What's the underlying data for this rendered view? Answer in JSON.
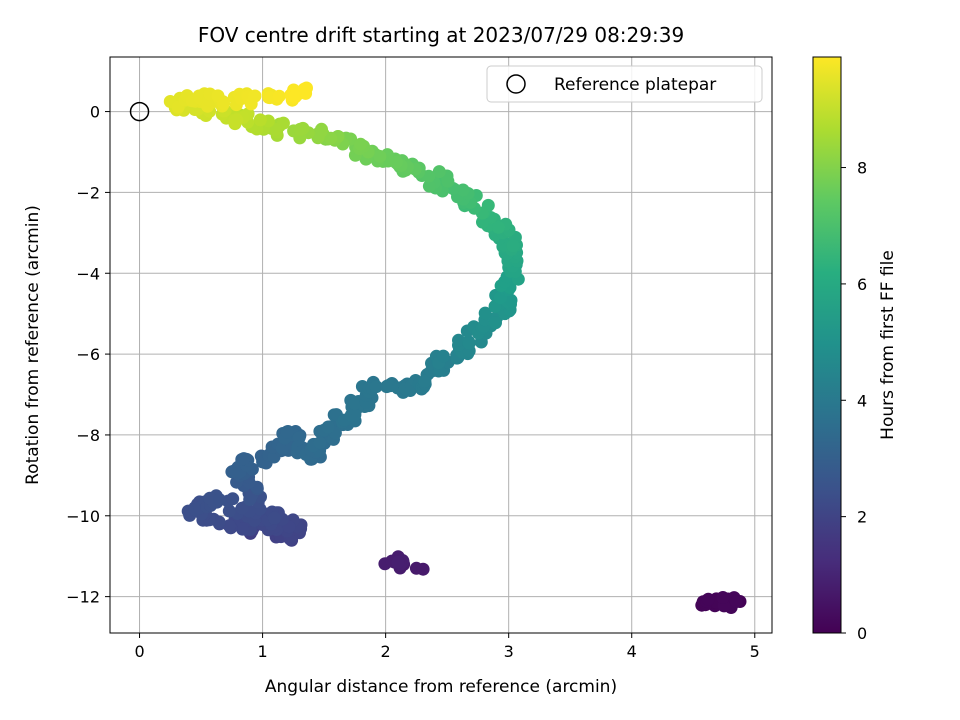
{
  "chart_data": {
    "type": "scatter",
    "title": "FOV centre drift starting at 2023/07/29 08:29:39",
    "xlabel": "Angular distance from reference (arcmin)",
    "ylabel": "Rotation from reference (arcmin)",
    "xlim": [
      -0.24,
      5.14
    ],
    "ylim": [
      -12.9,
      1.35
    ],
    "xticks": [
      0,
      1,
      2,
      3,
      4,
      5
    ],
    "yticks": [
      0,
      -2,
      -4,
      -6,
      -8,
      -10,
      -12
    ],
    "grid": true,
    "legend": {
      "position": "top-right",
      "entries": [
        "Reference platepar"
      ]
    },
    "reference_point": {
      "x": 0,
      "y": 0
    },
    "colorbar": {
      "label": "Hours from first FF file",
      "colormap": "viridis",
      "range": [
        0,
        9.9
      ],
      "ticks": [
        0,
        2,
        4,
        6,
        8
      ]
    },
    "anchors": [
      [
        4.88,
        -12.12,
        0.05
      ],
      [
        4.6,
        -12.2,
        0.1
      ],
      [
        4.85,
        -12.12,
        0.15
      ],
      [
        2.25,
        -11.3,
        0.7
      ],
      [
        2.05,
        -11.12,
        0.8
      ],
      [
        2.1,
        -11.15,
        0.85
      ],
      [
        0.9,
        -10.35,
        1.8
      ],
      [
        1.05,
        -10.2,
        2.0
      ],
      [
        1.2,
        -10.25,
        2.1
      ],
      [
        0.65,
        -10.2,
        2.2
      ],
      [
        0.45,
        -9.8,
        2.4
      ],
      [
        0.65,
        -9.6,
        2.5
      ],
      [
        1.3,
        -10.42,
        2.0
      ],
      [
        1.15,
        -10.45,
        1.9
      ],
      [
        0.8,
        -8.8,
        3.0
      ],
      [
        1.05,
        -8.5,
        3.1
      ],
      [
        1.25,
        -8.0,
        3.3
      ],
      [
        1.4,
        -8.6,
        3.4
      ],
      [
        1.55,
        -7.8,
        3.6
      ],
      [
        1.75,
        -7.5,
        3.8
      ],
      [
        1.9,
        -6.7,
        3.9
      ],
      [
        2.2,
        -6.9,
        4.0
      ],
      [
        2.4,
        -6.4,
        4.2
      ],
      [
        2.6,
        -5.9,
        4.5
      ],
      [
        2.8,
        -5.4,
        4.8
      ],
      [
        2.95,
        -4.9,
        5.1
      ],
      [
        3.0,
        -4.3,
        5.5
      ],
      [
        3.05,
        -3.6,
        5.9
      ],
      [
        2.95,
        -3.0,
        6.2
      ],
      [
        2.8,
        -2.5,
        6.6
      ],
      [
        2.6,
        -2.0,
        6.9
      ],
      [
        2.35,
        -1.6,
        7.2
      ],
      [
        2.1,
        -1.3,
        7.5
      ],
      [
        1.8,
        -0.9,
        7.8
      ],
      [
        1.45,
        -0.55,
        8.2
      ],
      [
        1.1,
        -0.45,
        8.6
      ],
      [
        0.8,
        -0.15,
        9.0
      ],
      [
        0.45,
        0.05,
        9.3
      ],
      [
        0.25,
        0.25,
        9.5
      ],
      [
        0.65,
        0.3,
        9.6
      ],
      [
        1.05,
        0.35,
        9.75
      ],
      [
        1.35,
        0.45,
        9.9
      ]
    ]
  }
}
